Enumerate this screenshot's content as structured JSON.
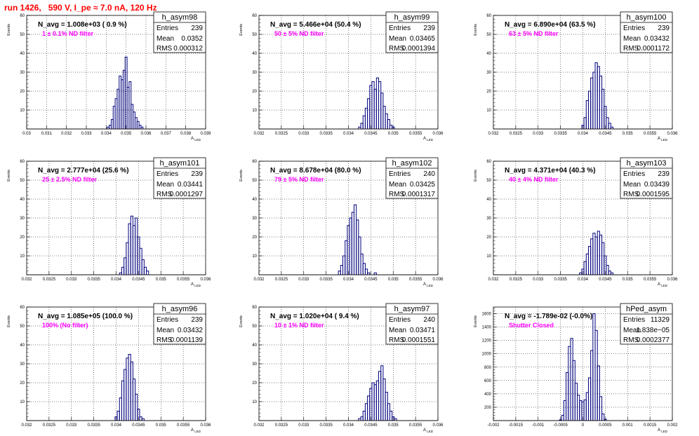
{
  "page_title": "run 1426,   590 V, I_pe ≈ 7.0 nA, 120 Hz",
  "chart_data": [
    {
      "type": "histogram",
      "name": "h_asym98",
      "ylabel": "Events",
      "xlabel": "A_LED",
      "nav_text": "N_avg = 1.008e+03 ( 0.9 %)",
      "filter_text": "1 ± 0.1% ND filter",
      "stats": {
        "entries": "239",
        "mean": "0.0352",
        "rms": "0.000312"
      },
      "stats_labels": {
        "entries": "Entries",
        "mean": "Mean",
        "rms": "RMS"
      },
      "xlim": [
        0.03,
        0.039
      ],
      "ylim": [
        0,
        60
      ],
      "xticks": [
        "0.03",
        "0.031",
        "0.032",
        "0.033",
        "0.034",
        "0.035",
        "0.036",
        "0.037",
        "0.038",
        "0.039"
      ],
      "yticks": [
        "10",
        "20",
        "30",
        "40",
        "50",
        "60"
      ],
      "bins": [
        [
          0.0341,
          1
        ],
        [
          0.0342,
          2
        ],
        [
          0.0343,
          5
        ],
        [
          0.0344,
          12
        ],
        [
          0.0345,
          16
        ],
        [
          0.0346,
          21
        ],
        [
          0.0347,
          28
        ],
        [
          0.0348,
          26
        ],
        [
          0.0349,
          31
        ],
        [
          0.035,
          38
        ],
        [
          0.0351,
          22
        ],
        [
          0.0352,
          25
        ],
        [
          0.0353,
          13
        ],
        [
          0.0354,
          9
        ],
        [
          0.0355,
          6
        ],
        [
          0.0356,
          4
        ],
        [
          0.0357,
          2
        ],
        [
          0.0358,
          1
        ]
      ]
    },
    {
      "type": "histogram",
      "name": "h_asym99",
      "ylabel": "Events",
      "xlabel": "A_LED",
      "nav_text": "N_avg = 5.466e+04 (50.4 %)",
      "filter_text": "50 ± 5% ND filter",
      "stats": {
        "entries": "239",
        "mean": "0.03465",
        "rms": "0.0001394"
      },
      "stats_labels": {
        "entries": "Entries",
        "mean": "Mean",
        "rms": "RMS"
      },
      "xlim": [
        0.032,
        0.036
      ],
      "ylim": [
        0,
        60
      ],
      "xticks": [
        "0.032",
        "0.0325",
        "0.033",
        "0.0335",
        "0.034",
        "0.0345",
        "0.035",
        "0.0355",
        "0.036"
      ],
      "yticks": [
        "10",
        "20",
        "30",
        "40",
        "50",
        "60"
      ],
      "bins": [
        [
          0.03425,
          1
        ],
        [
          0.0343,
          3
        ],
        [
          0.03435,
          7
        ],
        [
          0.0344,
          11
        ],
        [
          0.03445,
          16
        ],
        [
          0.0345,
          23
        ],
        [
          0.03455,
          25
        ],
        [
          0.0346,
          21
        ],
        [
          0.03465,
          27
        ],
        [
          0.0347,
          25
        ],
        [
          0.03475,
          19
        ],
        [
          0.0348,
          12
        ],
        [
          0.03485,
          8
        ],
        [
          0.0349,
          5
        ],
        [
          0.03495,
          2
        ],
        [
          0.035,
          1
        ]
      ]
    },
    {
      "type": "histogram",
      "name": "h_asym100",
      "ylabel": "Events",
      "xlabel": "A_LED",
      "nav_text": "N_avg = 6.890e+04 (63.5 %)",
      "filter_text": "63 ± 5% ND filter",
      "stats": {
        "entries": "239",
        "mean": "0.03432",
        "rms": "0.0001172"
      },
      "stats_labels": {
        "entries": "Entries",
        "mean": "Mean",
        "rms": "RMS"
      },
      "xlim": [
        0.032,
        0.036
      ],
      "ylim": [
        0,
        60
      ],
      "xticks": [
        "0.032",
        "0.0325",
        "0.033",
        "0.0335",
        "0.034",
        "0.0345",
        "0.035",
        "0.0355",
        "0.036"
      ],
      "yticks": [
        "10",
        "20",
        "30",
        "40",
        "50",
        "60"
      ],
      "bins": [
        [
          0.034,
          2
        ],
        [
          0.03405,
          6
        ],
        [
          0.0341,
          15
        ],
        [
          0.03415,
          20
        ],
        [
          0.0342,
          27
        ],
        [
          0.03425,
          30
        ],
        [
          0.0343,
          35
        ],
        [
          0.03435,
          33
        ],
        [
          0.0344,
          28
        ],
        [
          0.03445,
          21
        ],
        [
          0.0345,
          12
        ],
        [
          0.03455,
          6
        ],
        [
          0.0346,
          3
        ],
        [
          0.03465,
          1
        ]
      ]
    },
    {
      "type": "histogram",
      "name": "h_asym101",
      "ylabel": "Events",
      "xlabel": "A_LED",
      "nav_text": "N_avg = 2.777e+04 (25.6 %)",
      "filter_text": "25 ± 2.5% ND filter",
      "stats": {
        "entries": "239",
        "mean": "0.03441",
        "rms": "0.0001297"
      },
      "stats_labels": {
        "entries": "Entries",
        "mean": "Mean",
        "rms": "RMS"
      },
      "xlim": [
        0.032,
        0.036
      ],
      "ylim": [
        0,
        60
      ],
      "xticks": [
        "0.032",
        "0.0325",
        "0.033",
        "0.0335",
        "0.034",
        "0.0345",
        "0.035",
        "0.0355",
        "0.036"
      ],
      "yticks": [
        "10",
        "20",
        "30",
        "40",
        "50",
        "60"
      ],
      "bins": [
        [
          0.0341,
          1
        ],
        [
          0.03415,
          4
        ],
        [
          0.0342,
          9
        ],
        [
          0.03425,
          17
        ],
        [
          0.0343,
          27
        ],
        [
          0.03435,
          31
        ],
        [
          0.0344,
          26
        ],
        [
          0.03445,
          30
        ],
        [
          0.0345,
          20
        ],
        [
          0.03455,
          14
        ],
        [
          0.0346,
          8
        ],
        [
          0.03465,
          4
        ],
        [
          0.0347,
          2
        ]
      ]
    },
    {
      "type": "histogram",
      "name": "h_asym102",
      "ylabel": "Events",
      "xlabel": "A_LED",
      "nav_text": "N_avg = 8.678e+04 (80.0 %)",
      "filter_text": "79 ± 5% ND filter",
      "stats": {
        "entries": "240",
        "mean": "0.03425",
        "rms": "0.0001317"
      },
      "stats_labels": {
        "entries": "Entries",
        "mean": "Mean",
        "rms": "RMS"
      },
      "xlim": [
        0.032,
        0.036
      ],
      "ylim": [
        0,
        60
      ],
      "xticks": [
        "0.032",
        "0.0325",
        "0.033",
        "0.0335",
        "0.034",
        "0.0345",
        "0.035",
        "0.0355",
        "0.036"
      ],
      "yticks": [
        "10",
        "20",
        "30",
        "40",
        "50",
        "60"
      ],
      "bins": [
        [
          0.0338,
          2
        ],
        [
          0.03385,
          5
        ],
        [
          0.0339,
          10
        ],
        [
          0.03395,
          18
        ],
        [
          0.034,
          26
        ],
        [
          0.03405,
          30
        ],
        [
          0.0341,
          33
        ],
        [
          0.03415,
          37
        ],
        [
          0.0342,
          29
        ],
        [
          0.03425,
          20
        ],
        [
          0.0343,
          11
        ],
        [
          0.03435,
          6
        ],
        [
          0.0344,
          3
        ],
        [
          0.03445,
          1
        ],
        [
          0.0346,
          1
        ]
      ]
    },
    {
      "type": "histogram",
      "name": "h_asym103",
      "ylabel": "Events",
      "xlabel": "A_LED",
      "nav_text": "N_avg = 4.371e+04 (40.3 %)",
      "filter_text": "40 ± 4% ND filter",
      "stats": {
        "entries": "239",
        "mean": "0.03439",
        "rms": "0.0001595"
      },
      "stats_labels": {
        "entries": "Entries",
        "mean": "Mean",
        "rms": "RMS"
      },
      "xlim": [
        0.032,
        0.036
      ],
      "ylim": [
        0,
        60
      ],
      "xticks": [
        "0.032",
        "0.0325",
        "0.033",
        "0.0335",
        "0.034",
        "0.0345",
        "0.035",
        "0.0355",
        "0.036"
      ],
      "yticks": [
        "10",
        "20",
        "30",
        "40",
        "50",
        "60"
      ],
      "bins": [
        [
          0.03395,
          1
        ],
        [
          0.034,
          3
        ],
        [
          0.03405,
          7
        ],
        [
          0.0341,
          11
        ],
        [
          0.03415,
          15
        ],
        [
          0.0342,
          19
        ],
        [
          0.03425,
          22
        ],
        [
          0.0343,
          20
        ],
        [
          0.03435,
          23
        ],
        [
          0.0344,
          21
        ],
        [
          0.03445,
          17
        ],
        [
          0.0345,
          10
        ],
        [
          0.03455,
          5
        ],
        [
          0.0346,
          2
        ],
        [
          0.03465,
          1
        ]
      ]
    },
    {
      "type": "histogram",
      "name": "h_asym96",
      "ylabel": "Events",
      "xlabel": "A_LED",
      "nav_text": "N_avg = 1.085e+05 (100.0 %)",
      "filter_text": "100% (No filter)",
      "stats": {
        "entries": "239",
        "mean": "0.03432",
        "rms": "0.0001139"
      },
      "stats_labels": {
        "entries": "Entries",
        "mean": "Mean",
        "rms": "RMS"
      },
      "xlim": [
        0.032,
        0.036
      ],
      "ylim": [
        0,
        60
      ],
      "xticks": [
        "0.032",
        "0.0325",
        "0.033",
        "0.0335",
        "0.034",
        "0.0345",
        "0.035",
        "0.0355",
        "0.036"
      ],
      "yticks": [
        "10",
        "20",
        "30",
        "40",
        "50",
        "60"
      ],
      "bins": [
        [
          0.034,
          2
        ],
        [
          0.03405,
          5
        ],
        [
          0.0341,
          12
        ],
        [
          0.03415,
          21
        ],
        [
          0.0342,
          27
        ],
        [
          0.03425,
          33
        ],
        [
          0.0343,
          35
        ],
        [
          0.03435,
          31
        ],
        [
          0.0344,
          22
        ],
        [
          0.03445,
          14
        ],
        [
          0.0345,
          6
        ],
        [
          0.03455,
          2
        ],
        [
          0.0346,
          1
        ]
      ]
    },
    {
      "type": "histogram",
      "name": "h_asym97",
      "ylabel": "Events",
      "xlabel": "A_LED",
      "nav_text": "N_avg = 1.020e+04 ( 9.4 %)",
      "filter_text": "10 ± 1% ND filter",
      "stats": {
        "entries": "240",
        "mean": "0.03471",
        "rms": "0.0001551"
      },
      "stats_labels": {
        "entries": "Entries",
        "mean": "Mean",
        "rms": "RMS"
      },
      "xlim": [
        0.032,
        0.036
      ],
      "ylim": [
        0,
        60
      ],
      "xticks": [
        "0.032",
        "0.0325",
        "0.033",
        "0.0335",
        "0.034",
        "0.0345",
        "0.035",
        "0.0355",
        "0.036"
      ],
      "yticks": [
        "10",
        "20",
        "30",
        "40",
        "50",
        "60"
      ],
      "bins": [
        [
          0.03425,
          1
        ],
        [
          0.0343,
          2
        ],
        [
          0.03435,
          5
        ],
        [
          0.0344,
          9
        ],
        [
          0.03445,
          13
        ],
        [
          0.0345,
          17
        ],
        [
          0.03455,
          20
        ],
        [
          0.0346,
          19
        ],
        [
          0.03465,
          21
        ],
        [
          0.0347,
          26
        ],
        [
          0.03475,
          29
        ],
        [
          0.0348,
          22
        ],
        [
          0.03485,
          15
        ],
        [
          0.0349,
          9
        ],
        [
          0.03495,
          5
        ],
        [
          0.035,
          2
        ],
        [
          0.03505,
          1
        ]
      ]
    },
    {
      "type": "histogram",
      "name": "hPed_asym",
      "ylabel": "Events",
      "xlabel": "A_LED",
      "nav_text": "N_avg = -1.789e-02 (-0.0%)",
      "filter_text": "Shutter Closed",
      "stats": {
        "entries": "11329",
        "mean": "1.838e−05",
        "rms": "0.0002377"
      },
      "stats_labels": {
        "entries": "Entries",
        "mean": "Mean",
        "rms": "RMS"
      },
      "xlim": [
        -0.002,
        0.002
      ],
      "ylim": [
        0,
        1700
      ],
      "xticks": [
        "-0.002",
        "-0.0015",
        "-0.001",
        "-0.0005",
        "0",
        "0.0005",
        "0.001",
        "0.0015",
        "0.002"
      ],
      "yticks": [
        "200",
        "400",
        "600",
        "800",
        "1000",
        "1200",
        "1400",
        "1600"
      ],
      "bins": [
        [
          -0.0005,
          10
        ],
        [
          -0.00045,
          80
        ],
        [
          -0.0004,
          300
        ],
        [
          -0.00035,
          720
        ],
        [
          -0.0003,
          1110
        ],
        [
          -0.00025,
          1230
        ],
        [
          -0.0002,
          900
        ],
        [
          -0.00015,
          560
        ],
        [
          -0.0001,
          380
        ],
        [
          -5e-05,
          300
        ],
        [
          0.0,
          280
        ],
        [
          5e-05,
          310
        ],
        [
          0.0001,
          420
        ],
        [
          0.00015,
          640
        ],
        [
          0.0002,
          1050
        ],
        [
          0.00025,
          1600
        ],
        [
          0.0003,
          1350
        ],
        [
          0.00035,
          820
        ],
        [
          0.0004,
          360
        ],
        [
          0.00045,
          100
        ],
        [
          0.0005,
          20
        ]
      ]
    }
  ]
}
